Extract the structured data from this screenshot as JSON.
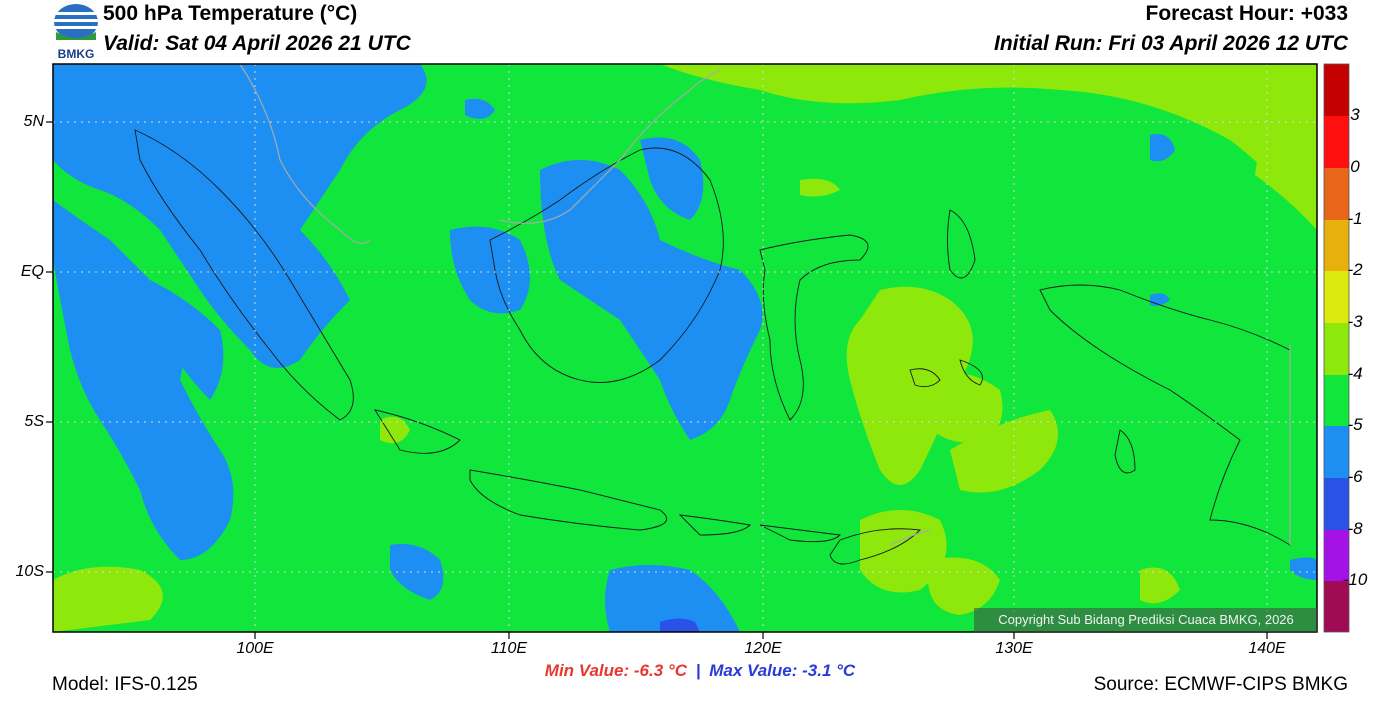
{
  "header": {
    "logo_text": "BMKG",
    "title": "500 hPa Temperature (°C)",
    "valid": "Valid: Sat 04 April 2026 21 UTC",
    "forecast_hour": "Forecast Hour: +033",
    "initial_run": "Initial Run: Fri 03 April 2026 12 UTC"
  },
  "map": {
    "lat_labels": [
      "5N",
      "EQ",
      "5S",
      "10S"
    ],
    "lon_labels": [
      "100E",
      "110E",
      "120E",
      "130E",
      "140E"
    ],
    "copyright": "Copyright Sub Bidang Prediksi Cuaca BMKG, 2026"
  },
  "colorbar": {
    "labels": [
      "3",
      "0",
      "-1",
      "-2",
      "-3",
      "-4",
      "-5",
      "-6",
      "-8",
      "-10"
    ],
    "colors": [
      "#c50000",
      "#ff0f0f",
      "#e8661a",
      "#e6b10c",
      "#dde80c",
      "#8ee80c",
      "#10e63c",
      "#1d8ff2",
      "#2a52e6",
      "#a512e8",
      "#a10a54"
    ]
  },
  "footer": {
    "min_value": "Min Value: -6.3 °C",
    "separator": "|",
    "max_value": "Max Value: -3.1 °C",
    "model": "Model: IFS-0.125",
    "source": "Source: ECMWF-CIPS BMKG"
  }
}
